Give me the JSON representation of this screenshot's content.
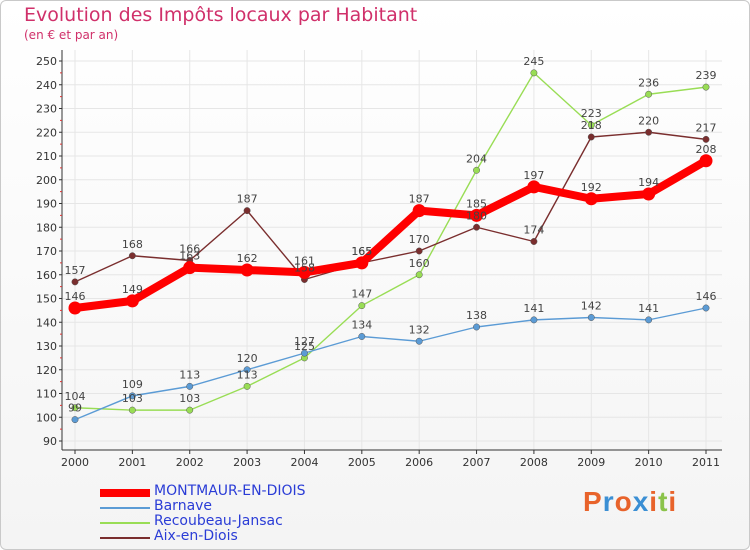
{
  "chart_data": {
    "type": "line",
    "title": "Evolution des Impôts locaux par Habitant",
    "subtitle": "(en € et par an)",
    "categories": [
      "2000",
      "2001",
      "2002",
      "2003",
      "2004",
      "2005",
      "2006",
      "2007",
      "2008",
      "2009",
      "2010",
      "2011"
    ],
    "ylim": [
      90,
      250
    ],
    "yticks": [
      90,
      100,
      110,
      120,
      130,
      140,
      150,
      160,
      170,
      180,
      190,
      200,
      210,
      220,
      230,
      240,
      250
    ],
    "series": [
      {
        "name": "MONTMAUR-EN-DIOIS",
        "color": "#ff0000",
        "values": [
          146,
          149,
          163,
          162,
          161,
          165,
          187,
          185,
          197,
          192,
          194,
          208
        ]
      },
      {
        "name": "Barnave",
        "color": "#5b9bd5",
        "values": [
          99,
          109,
          113,
          120,
          127,
          134,
          132,
          138,
          141,
          142,
          141,
          146
        ]
      },
      {
        "name": "Recoubeau-Jansac",
        "color": "#99dd55",
        "values": [
          104,
          103,
          103,
          113,
          125,
          147,
          160,
          204,
          245,
          223,
          236,
          239
        ]
      },
      {
        "name": "Aix-en-Diois",
        "color": "#7a2e2e",
        "values": [
          157,
          168,
          166,
          187,
          158,
          165,
          170,
          180,
          174,
          218,
          220,
          217
        ]
      }
    ]
  },
  "legend": {
    "items": [
      {
        "label": "MONTMAUR-EN-DIOIS",
        "color": "#ff0000"
      },
      {
        "label": "Barnave",
        "color": "#5b9bd5"
      },
      {
        "label": "Recoubeau-Jansac",
        "color": "#99dd55"
      },
      {
        "label": "Aix-en-Diois",
        "color": "#7a2e2e"
      }
    ]
  },
  "logo": {
    "letters": [
      "P",
      "r",
      "o",
      "x",
      "i",
      "t",
      "i"
    ],
    "colors": [
      "#e8632b",
      "#3b8fd4",
      "#e8632b",
      "#3b8fd4",
      "#e8632b",
      "#8bc34a",
      "#e8632b"
    ]
  }
}
